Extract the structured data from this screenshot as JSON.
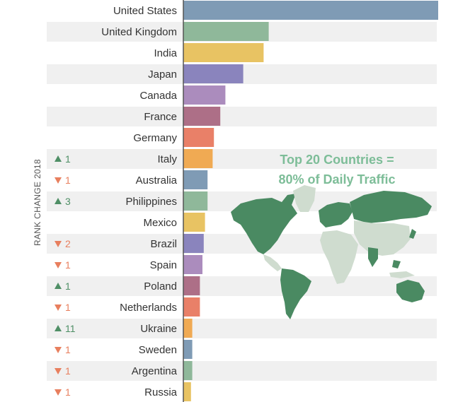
{
  "chart_data": {
    "type": "bar",
    "orientation": "horizontal",
    "categories": [
      "United States",
      "United Kingdom",
      "India",
      "Japan",
      "Canada",
      "France",
      "Germany",
      "Italy",
      "Australia",
      "Philippines",
      "Mexico",
      "Brazil",
      "Spain",
      "Poland",
      "Netherlands",
      "Ukraine",
      "Sweden",
      "Argentina",
      "Russia"
    ],
    "values": [
      100,
      33.5,
      31.5,
      23.5,
      16.5,
      14.5,
      12,
      11.5,
      9.5,
      9.5,
      8.5,
      8,
      7.5,
      6.5,
      6.5,
      3.5,
      3.5,
      3.5,
      3
    ],
    "xlim": [
      0,
      100
    ],
    "rank_change_label": "RANK CHANGE 2018",
    "rank_changes": [
      "",
      "",
      "",
      "",
      "",
      "",
      "",
      "1",
      "1",
      "3",
      "",
      "2",
      "1",
      "1",
      "1",
      "11",
      "1",
      "1",
      "1"
    ],
    "rank_direction": [
      "",
      "",
      "",
      "",
      "",
      "",
      "",
      "up",
      "down",
      "up",
      "",
      "down",
      "down",
      "up",
      "down",
      "up",
      "down",
      "down",
      "down"
    ],
    "bar_colors": [
      "#7f9bb5",
      "#8fb89a",
      "#e8c363",
      "#8a84bd",
      "#ab8cbd",
      "#ad6f87",
      "#e98068",
      "#f0aa53",
      "#7f9bb5",
      "#8fb89a",
      "#e8c363",
      "#8a84bd",
      "#ab8cbd",
      "#ad6f87",
      "#e98068",
      "#f0aa53",
      "#7f9bb5",
      "#8fb89a",
      "#e8c363"
    ],
    "up_color": "#4f8f66",
    "down_color": "#e87f5e",
    "annotation": [
      "Top 20 Countries =",
      "80% of Daily Traffic"
    ],
    "map_highlight_color": "#4a8a62",
    "map_other_color": "#cfdccf",
    "grid": false,
    "legend": "none"
  }
}
